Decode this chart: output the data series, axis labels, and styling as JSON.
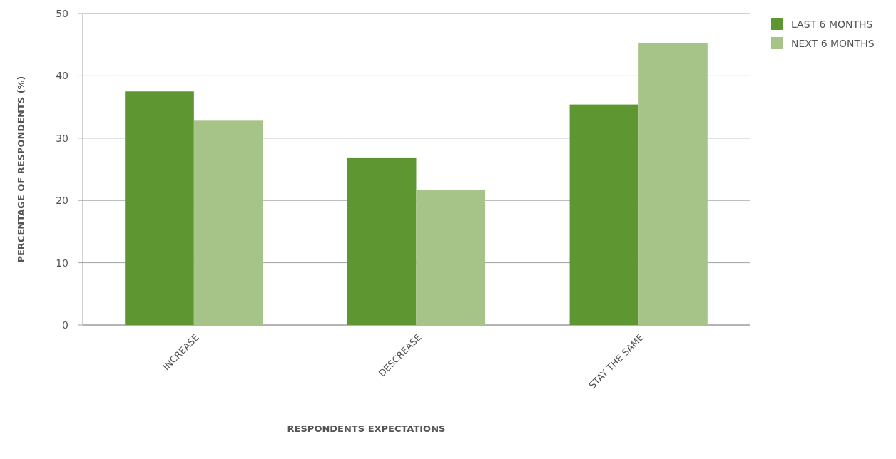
{
  "chart_data": {
    "type": "bar",
    "xlabel": "RESPONDENTS EXPECTATIONS",
    "ylabel": "PERCENTAGE OF RESPONDENTS (%)",
    "categories": [
      "INCREASE",
      "DESCREASE",
      "STAY THE SAME"
    ],
    "series": [
      {
        "name": "LAST 6 MONTHS",
        "color": "#5e9732",
        "values": [
          37.5,
          26.9,
          35.4
        ]
      },
      {
        "name": "NEXT 6 MONTHS",
        "color": "#a6c388",
        "values": [
          32.8,
          21.7,
          45.2
        ]
      }
    ],
    "ylim": [
      0,
      50
    ],
    "yticks": [
      0,
      10,
      20,
      30,
      40,
      50
    ],
    "grid": "y",
    "legend": "top right"
  }
}
